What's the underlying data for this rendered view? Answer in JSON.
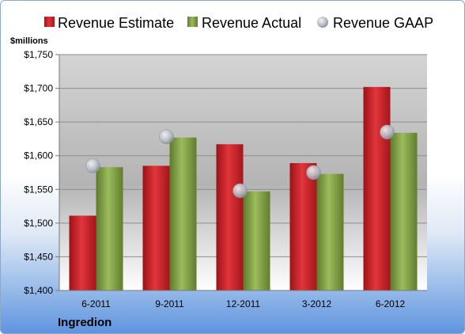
{
  "chart_data": {
    "type": "bar",
    "company": "Ingredion",
    "unit_label": "$millions",
    "categories": [
      "6-2011",
      "9-2011",
      "12-2011",
      "3-2012",
      "6-2012"
    ],
    "series": [
      {
        "name": "Revenue Estimate",
        "kind": "bar",
        "color": "#d2232a",
        "values": [
          1511,
          1585,
          1617,
          1589,
          1702
        ]
      },
      {
        "name": "Revenue Actual",
        "kind": "bar",
        "color": "#8aaa4a",
        "values": [
          1583,
          1627,
          1547,
          1573,
          1634
        ]
      },
      {
        "name": "Revenue GAAP",
        "kind": "marker",
        "color": "#b8bcc4",
        "values": [
          1585,
          1628,
          1548,
          1575,
          1635
        ]
      }
    ],
    "ylim": [
      1400,
      1750
    ],
    "yticks": [
      1400,
      1450,
      1500,
      1550,
      1600,
      1650,
      1700,
      1750
    ],
    "ytick_labels": [
      "$1,400",
      "$1,450",
      "$1,500",
      "$1,550",
      "$1,600",
      "$1,650",
      "$1,700",
      "$1,750"
    ],
    "grid": true,
    "legend_position": "top"
  }
}
